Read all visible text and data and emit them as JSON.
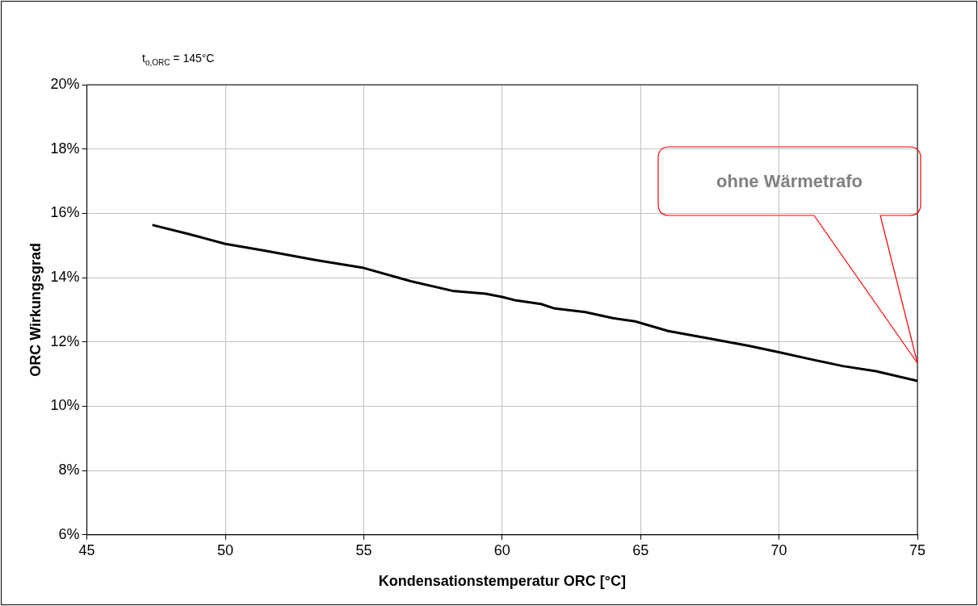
{
  "chart_data": {
    "type": "line",
    "title": "t$_{o,ORC}$ = 145°C",
    "xlabel": "Kondensationstemperatur ORC [°C]",
    "ylabel": "ORC Wirkungsgrad",
    "x": [
      47.4,
      48.7,
      50.0,
      51.4,
      53.3,
      55.0,
      56.7,
      58.2,
      59.4,
      60.0,
      60.5,
      61.4,
      61.9,
      63.0,
      64.0,
      64.8,
      66.0,
      67.4,
      68.9,
      70.0,
      71.1,
      72.3,
      73.5,
      75.0
    ],
    "series": [
      {
        "color": "#000000",
        "values": [
          15.63,
          15.35,
          15.05,
          14.84,
          14.54,
          14.3,
          13.89,
          13.59,
          13.5,
          13.4,
          13.29,
          13.18,
          13.04,
          12.93,
          12.74,
          12.64,
          12.34,
          12.12,
          11.88,
          11.68,
          11.47,
          11.25,
          11.09,
          10.79
        ]
      }
    ],
    "xlim": [
      45,
      75
    ],
    "xticks": [
      45,
      50,
      55,
      60,
      65,
      70,
      75
    ],
    "ylim": [
      6,
      20
    ],
    "yticks": [
      {
        "value": 6,
        "label": "6%"
      },
      {
        "value": 8,
        "label": "8%"
      },
      {
        "value": 10,
        "label": "10%"
      },
      {
        "value": 12,
        "label": "12%"
      },
      {
        "value": 14,
        "label": "14%"
      },
      {
        "value": 16,
        "label": "16%"
      },
      {
        "value": 18,
        "label": "18%"
      },
      {
        "value": 20,
        "label": "20%"
      }
    ],
    "annotations": [
      "ohne Wärmetrafo"
    ],
    "grid": true,
    "legend": false,
    "marker": "none",
    "line_style": "solid"
  }
}
